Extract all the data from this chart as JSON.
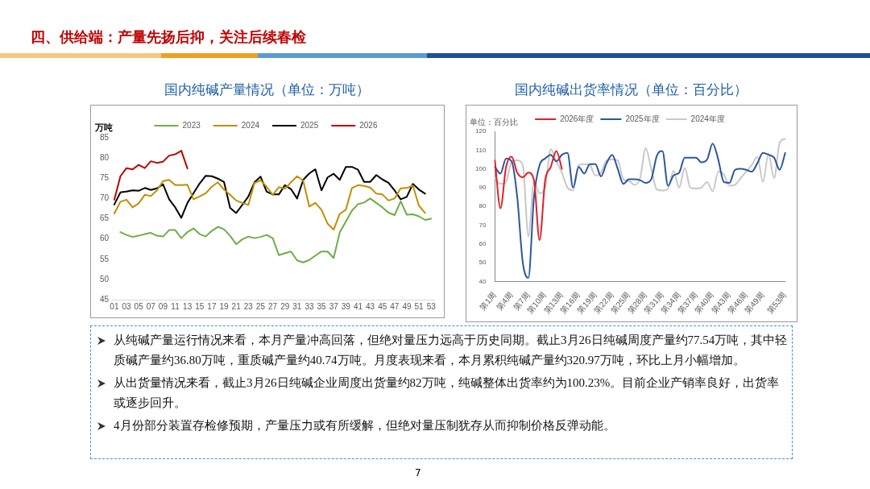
{
  "chart_data": [
    {
      "type": "line",
      "title": "国内纯碱产量情况（单位：万吨）",
      "ylabel": "万吨",
      "categories": [
        "01",
        null,
        "03",
        null,
        "05",
        null,
        "07",
        null,
        "09",
        null,
        "11",
        null,
        "13",
        null,
        "15",
        null,
        "17",
        null,
        "19",
        null,
        "21",
        null,
        "23",
        null,
        "25",
        null,
        "27",
        null,
        "29",
        null,
        "31",
        null,
        "33",
        null,
        "35",
        null,
        "37",
        null,
        "39",
        null,
        "41",
        null,
        "43",
        null,
        "45",
        null,
        "47",
        null,
        "49",
        null,
        "51",
        null,
        "53"
      ],
      "series": [
        {
          "name": "2023",
          "color": "#70ad47",
          "values": [
            null,
            61.7,
            61.0,
            60.5,
            60.8,
            61.2,
            61.5,
            60.8,
            60.6,
            62.2,
            62.2,
            60.2,
            61.7,
            62.6,
            61.2,
            60.6,
            62.0,
            63.0,
            62.4,
            60.8,
            58.7,
            59.9,
            60.6,
            60.2,
            60.5,
            61.0,
            60.2,
            56.0,
            56.5,
            56.9,
            54.7,
            54.2,
            54.8,
            55.9,
            56.9,
            56.9,
            55.3,
            61.6,
            64.3,
            67.0,
            68.6,
            69.0,
            70.0,
            68.9,
            67.8,
            66.5,
            65.9,
            69.3,
            66.0,
            66.1,
            65.6,
            64.7,
            65.0
          ]
        },
        {
          "name": "2024",
          "color": "#bf9000",
          "values": [
            66.3,
            69.2,
            69.7,
            67.8,
            68.8,
            70.9,
            70.6,
            72.0,
            74.3,
            74.6,
            73.3,
            73.3,
            73.4,
            69.8,
            70.5,
            71.3,
            72.9,
            74.0,
            72.2,
            70.9,
            69.5,
            68.9,
            68.4,
            73.8,
            74.5,
            72.9,
            70.9,
            72.8,
            72.4,
            74.0,
            75.5,
            74.4,
            68.0,
            68.9,
            67.2,
            63.8,
            62.3,
            66.2,
            67.2,
            72.6,
            73.3,
            73.1,
            72.7,
            71.2,
            71.0,
            69.5,
            70.0,
            72.5,
            72.6,
            73.2,
            68.2,
            66.4,
            null
          ]
        },
        {
          "name": "2025",
          "color": "#000000",
          "values": [
            68.5,
            71.5,
            71.7,
            72.0,
            71.9,
            72.6,
            72.1,
            72.5,
            73.5,
            69.8,
            67.8,
            65.2,
            68.9,
            71.3,
            73.7,
            75.6,
            75.5,
            74.9,
            74.1,
            67.7,
            66.4,
            68.4,
            70.5,
            74.0,
            75.4,
            71.7,
            71.0,
            71.0,
            73.3,
            72.3,
            70.0,
            74.6,
            76.2,
            77.2,
            72.0,
            75.2,
            76.1,
            74.6,
            77.8,
            77.8,
            77.1,
            74.1,
            74.1,
            75.8,
            74.7,
            73.9,
            72.0,
            69.8,
            70.4,
            73.6,
            72.2,
            71.2,
            null
          ]
        },
        {
          "name": "2026",
          "color": "#c00000",
          "values": [
            69.7,
            75.5,
            77.5,
            77.2,
            78.3,
            77.5,
            79.2,
            78.8,
            79.1,
            80.6,
            80.9,
            81.8,
            77.4,
            null,
            null,
            null,
            null,
            null,
            null,
            null,
            null,
            null,
            null,
            null,
            null,
            null,
            null,
            null,
            null,
            null,
            null,
            null,
            null,
            null,
            null,
            null,
            null,
            null,
            null,
            null,
            null,
            null,
            null,
            null,
            null,
            null,
            null,
            null,
            null,
            null,
            null,
            null,
            null
          ]
        }
      ],
      "ylim": [
        45,
        85
      ],
      "yticks": [
        45,
        50,
        55,
        60,
        65,
        70,
        75,
        80,
        85
      ],
      "grid": false,
      "legend": "top",
      "marker": "none",
      "line_style": "solid"
    },
    {
      "type": "line",
      "title": "国内纯碱出货率情况（单位：百分比）",
      "ylabel": "单位：百分比",
      "categories": [
        "第1周",
        null,
        null,
        "第4周",
        null,
        null,
        "第7周",
        null,
        null,
        "第10周",
        null,
        null,
        "第13周",
        null,
        null,
        "第16周",
        null,
        null,
        "第19周",
        null,
        null,
        "第22周",
        null,
        null,
        "第25周",
        null,
        null,
        "第28周",
        null,
        null,
        "第31周",
        null,
        null,
        "第34周",
        null,
        null,
        "第37周",
        null,
        null,
        "第40周",
        null,
        null,
        "第43周",
        null,
        null,
        "第46周",
        null,
        null,
        "第49周",
        null,
        null,
        null,
        "第53周"
      ],
      "series": [
        {
          "name": "2026年度",
          "color": "#e0202a",
          "values": [
            104.5,
            79,
            101,
            106.5,
            98,
            95.5,
            98,
            94,
            62,
            94,
            101,
            109.5,
            100,
            null,
            null,
            null,
            null,
            null,
            null,
            null,
            null,
            null,
            null,
            null,
            null,
            null,
            null,
            null,
            null,
            null,
            null,
            null,
            null,
            null,
            null,
            null,
            null,
            null,
            null,
            null,
            null,
            null,
            null,
            null,
            null,
            null,
            null,
            null,
            null,
            null,
            null,
            null,
            null
          ]
        },
        {
          "name": "2025年度",
          "color": "#2a56a0",
          "values": [
            101,
            97.5,
            105.5,
            104,
            85,
            50,
            42,
            85,
            102,
            105.5,
            107.5,
            104,
            107.5,
            108.5,
            90,
            101,
            97.5,
            102.5,
            102.5,
            96,
            103,
            107.5,
            100,
            92,
            94.5,
            94.5,
            94,
            92.5,
            94.5,
            107,
            109.5,
            91,
            96.5,
            98,
            106,
            106,
            106,
            103.5,
            105,
            113.5,
            105,
            93,
            92.5,
            99.5,
            100,
            99.5,
            98.5,
            103,
            108.5,
            107.5,
            106,
            99.5,
            108.5
          ]
        },
        {
          "name": "2024年度",
          "color": "#c8c8c8",
          "values": [
            95,
            92,
            93,
            104,
            104.5,
            102,
            64,
            93,
            87,
            90,
            110.5,
            104,
            98,
            90,
            88.5,
            102,
            102.5,
            102,
            96.5,
            98,
            104.5,
            105,
            104.5,
            94.5,
            93.5,
            91.5,
            95,
            111,
            100,
            89,
            88.5,
            89.5,
            99,
            90,
            100.5,
            90,
            89.5,
            90,
            93,
            88,
            98.5,
            97,
            91,
            91.5,
            95,
            98.5,
            102,
            106.5,
            93,
            108,
            95,
            114,
            116
          ]
        }
      ],
      "ylim": [
        40,
        120
      ],
      "yticks": [
        40,
        50,
        60,
        70,
        80,
        90,
        100,
        110,
        120
      ],
      "grid": false,
      "legend": "top",
      "marker": "none",
      "line_style": "solid"
    },
    {
      "type": "other",
      "title": "四、供给端：产量先扬后抑，关注后续春检",
      "annotations": [
        "从纯碱产量运行情况来看，本月产量冲高回落，但绝对量压力远高于历史同期。截止3月26日纯碱周度产量约77.54万吨，其中轻质碱产量约36.80万吨，重质碱产量约40.74万吨。月度表现来看，本月累积纯碱产量约320.97万吨，环比上月小幅增加。",
        "从出货量情况来看，截止3月26日纯碱企业周度出货量约82万吨，纯碱整体出货率约为100.23%。目前企业产销率良好，出货率或逐步回升。",
        "4月份部分装置存检修预期，产量压力或有所缓解，但绝对量压制犹存从而抑制价格反弹动能。",
        "7"
      ]
    }
  ]
}
